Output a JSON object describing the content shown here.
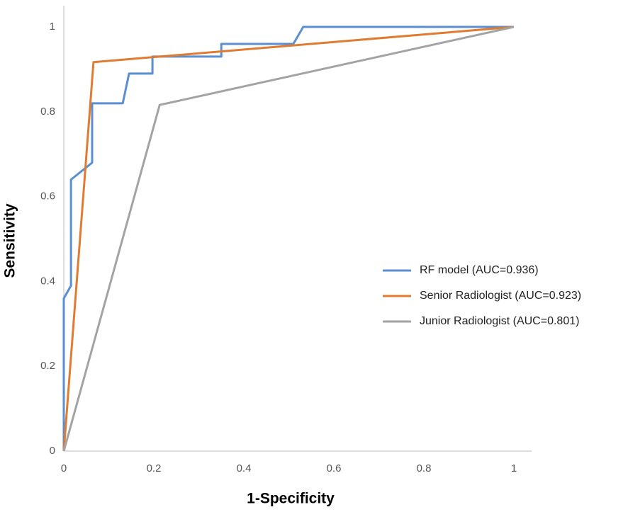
{
  "chart_data": {
    "type": "line",
    "xlabel": "1-Specificity",
    "ylabel": "Sensitivity",
    "xlim": [
      0,
      1
    ],
    "ylim": [
      0,
      1
    ],
    "xticks": [
      0,
      0.2,
      0.4,
      0.6,
      0.8,
      1
    ],
    "yticks": [
      0,
      0.2,
      0.4,
      0.6,
      0.8,
      1
    ],
    "grid": false,
    "legend": "right",
    "series": [
      {
        "name": "RF model (AUC=0.936)",
        "color": "#5b8fd0",
        "x": [
          0,
          0,
          0.016,
          0.016,
          0.063,
          0.063,
          0.131,
          0.145,
          0.197,
          0.197,
          0.35,
          0.35,
          0.51,
          0.532,
          1
        ],
        "values": [
          0,
          0.36,
          0.39,
          0.64,
          0.68,
          0.82,
          0.82,
          0.89,
          0.89,
          0.93,
          0.93,
          0.96,
          0.96,
          1,
          1
        ]
      },
      {
        "name": "Senior Radiologist (AUC=0.923)",
        "color": "#e07b32",
        "x": [
          0,
          0.066,
          1
        ],
        "values": [
          0,
          0.917,
          1
        ]
      },
      {
        "name": "Junior Radiologist (AUC=0.801)",
        "color": "#a3a3a3",
        "x": [
          0,
          0.213,
          1
        ],
        "values": [
          0,
          0.816,
          1
        ]
      }
    ]
  }
}
